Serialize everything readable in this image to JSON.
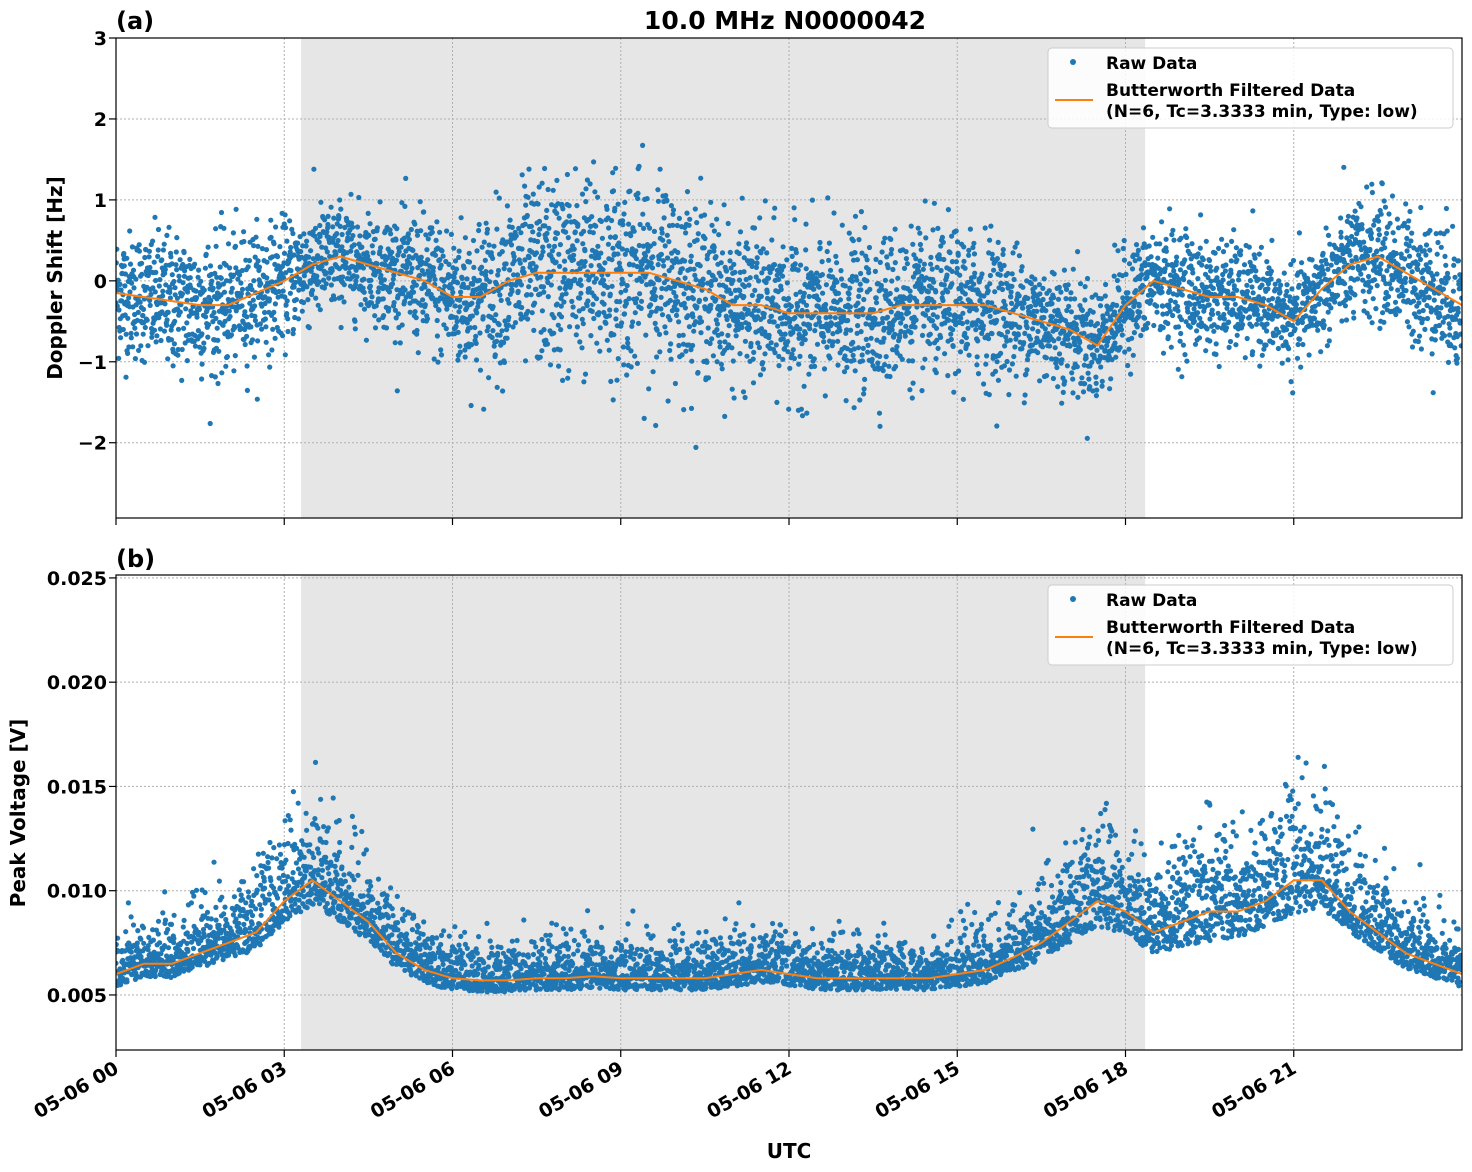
{
  "chart_data": [
    {
      "type": "scatter",
      "panel_label": "(a)",
      "title": "10.0 MHz N0000042",
      "xlabel": "",
      "ylabel": "Doppler Shift [Hz]",
      "xlim_hours_utc": [
        0,
        24
      ],
      "ylim": [
        -2.93,
        3
      ],
      "yticks": [
        3,
        2,
        1,
        0,
        -1,
        -2
      ],
      "ytick_labels": [
        "3",
        "2",
        "1",
        "0",
        "−1",
        "−2"
      ],
      "grid": true,
      "legend_placement": "top-right",
      "shaded_interval_hours_utc": [
        3.3,
        18.35
      ],
      "series": [
        {
          "name": "Raw Data",
          "kind": "points",
          "color": "#1f77b4",
          "approx_spread_halfwidth": [
            0.65,
            0.65,
            0.7,
            0.7,
            0.7,
            0.65,
            0.6,
            0.6,
            0.55,
            0.55,
            0.6,
            0.7,
            0.75,
            0.8,
            0.85,
            0.95,
            1.0,
            1.0,
            1.0,
            1.0,
            0.95,
            0.85,
            0.8,
            0.8,
            0.8,
            0.8,
            0.8,
            0.8,
            0.75,
            0.75,
            0.75,
            0.75,
            0.7,
            0.65,
            0.6,
            0.6,
            0.55,
            0.6,
            0.6,
            0.6,
            0.55,
            0.5,
            0.5,
            0.55,
            0.6,
            0.65,
            0.65,
            0.7,
            0.7
          ]
        },
        {
          "name": "Butterworth Filtered Data\n(N=6, Tc=3.3333 min, Type: low)",
          "kind": "line",
          "color": "#ff7f0e",
          "x_hours": [
            0,
            0.5,
            1,
            1.5,
            2,
            2.5,
            3,
            3.5,
            4,
            4.5,
            5,
            5.5,
            6,
            6.5,
            7,
            7.5,
            8,
            8.5,
            9,
            9.5,
            10,
            10.5,
            11,
            11.5,
            12,
            12.5,
            13,
            13.5,
            14,
            14.5,
            15,
            15.5,
            16,
            16.5,
            17,
            17.5,
            18,
            18.5,
            19,
            19.5,
            20,
            20.5,
            21,
            21.5,
            22,
            22.5,
            23,
            23.5,
            24
          ],
          "values": [
            -0.15,
            -0.2,
            -0.25,
            -0.3,
            -0.3,
            -0.15,
            0.0,
            0.2,
            0.3,
            0.2,
            0.1,
            0.0,
            -0.2,
            -0.2,
            0.0,
            0.1,
            0.1,
            0.1,
            0.1,
            0.1,
            0.0,
            -0.1,
            -0.3,
            -0.3,
            -0.4,
            -0.4,
            -0.4,
            -0.4,
            -0.3,
            -0.3,
            -0.3,
            -0.3,
            -0.4,
            -0.5,
            -0.6,
            -0.8,
            -0.3,
            0.0,
            -0.1,
            -0.2,
            -0.2,
            -0.3,
            -0.5,
            -0.1,
            0.2,
            0.3,
            0.1,
            -0.1,
            -0.3
          ]
        }
      ],
      "legend": [
        "Raw Data",
        "Butterworth Filtered Data",
        "(N=6, Tc=3.3333 min, Type: low)"
      ]
    },
    {
      "type": "scatter",
      "panel_label": "(b)",
      "xlabel": "UTC",
      "ylabel": "Peak Voltage [V]",
      "xlim_hours_utc": [
        0,
        24
      ],
      "ylim": [
        0.00236,
        0.02514
      ],
      "yticks": [
        0.025,
        0.02,
        0.015,
        0.01,
        0.005
      ],
      "ytick_labels": [
        "0.025",
        "0.020",
        "0.015",
        "0.010",
        "0.005"
      ],
      "xticks_hours": [
        0,
        3,
        6,
        9,
        12,
        15,
        18,
        21
      ],
      "xtick_labels": [
        "05-06 00",
        "05-06 03",
        "05-06 06",
        "05-06 09",
        "05-06 12",
        "05-06 15",
        "05-06 18",
        "05-06 21"
      ],
      "grid": true,
      "legend_placement": "top-right",
      "shaded_interval_hours_utc": [
        3.3,
        18.35
      ],
      "series": [
        {
          "name": "Raw Data",
          "kind": "points",
          "color": "#1f77b4",
          "approx_spread_halfwidth": [
            0.0018,
            0.0018,
            0.0019,
            0.002,
            0.0022,
            0.0025,
            0.003,
            0.0033,
            0.003,
            0.0025,
            0.002,
            0.0018,
            0.0016,
            0.0016,
            0.0016,
            0.0016,
            0.0016,
            0.0016,
            0.0016,
            0.0016,
            0.0016,
            0.0016,
            0.0017,
            0.0018,
            0.0017,
            0.0016,
            0.0016,
            0.0016,
            0.0016,
            0.0016,
            0.0017,
            0.0018,
            0.002,
            0.0022,
            0.0028,
            0.0035,
            0.003,
            0.0028,
            0.0035,
            0.004,
            0.0035,
            0.0035,
            0.0045,
            0.004,
            0.003,
            0.0025,
            0.0022,
            0.002,
            0.0018
          ]
        },
        {
          "name": "Butterworth Filtered Data\n(N=6, Tc=3.3333 min, Type: low)",
          "kind": "line",
          "color": "#ff7f0e",
          "x_hours": [
            0,
            0.5,
            1,
            1.5,
            2,
            2.5,
            3,
            3.5,
            4,
            4.5,
            5,
            5.5,
            6,
            6.5,
            7,
            7.5,
            8,
            8.5,
            9,
            9.5,
            10,
            10.5,
            11,
            11.5,
            12,
            12.5,
            13,
            13.5,
            14,
            14.5,
            15,
            15.5,
            16,
            16.5,
            17,
            17.5,
            18,
            18.5,
            19,
            19.5,
            20,
            20.5,
            21,
            21.5,
            22,
            22.5,
            23,
            23.5,
            24
          ],
          "values": [
            0.006,
            0.0065,
            0.0065,
            0.007,
            0.0075,
            0.008,
            0.0095,
            0.0105,
            0.0095,
            0.0085,
            0.007,
            0.0062,
            0.0058,
            0.0057,
            0.0057,
            0.0058,
            0.0058,
            0.0059,
            0.0058,
            0.0058,
            0.0058,
            0.0058,
            0.006,
            0.0062,
            0.006,
            0.0058,
            0.0058,
            0.0058,
            0.0058,
            0.0058,
            0.006,
            0.0062,
            0.0068,
            0.0075,
            0.0085,
            0.0095,
            0.009,
            0.008,
            0.0085,
            0.009,
            0.009,
            0.0095,
            0.0105,
            0.0105,
            0.009,
            0.008,
            0.007,
            0.0065,
            0.006
          ]
        }
      ],
      "legend": [
        "Raw Data",
        "Butterworth Filtered Data",
        "(N=6, Tc=3.3333 min, Type: low)"
      ]
    }
  ]
}
